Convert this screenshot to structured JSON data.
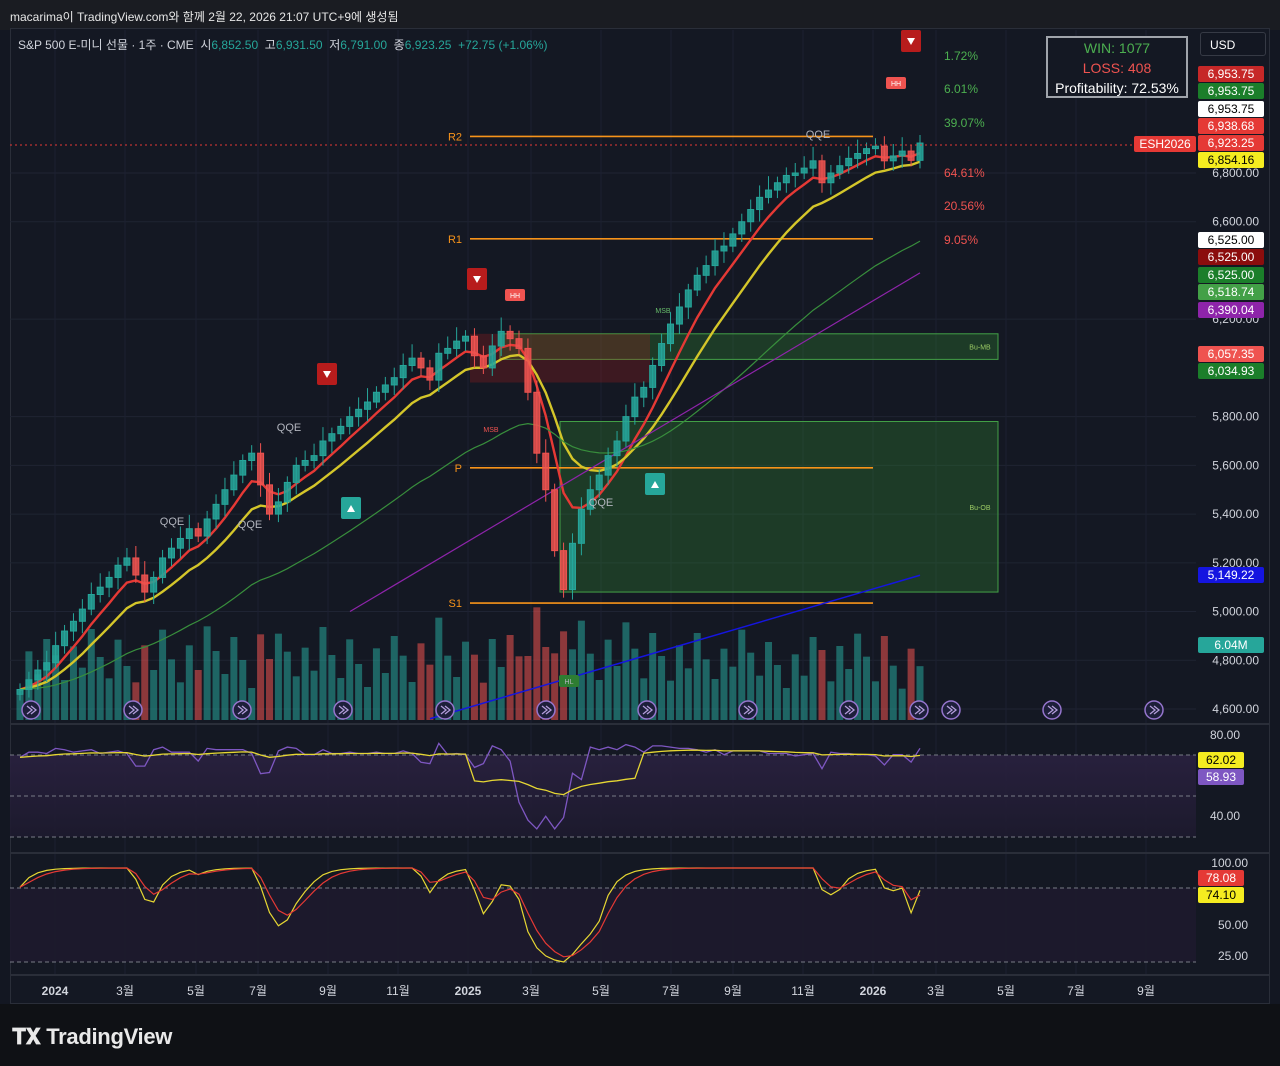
{
  "header": {
    "title": "macarima이 TradingView.com와 함께 2월 22, 2026 21:07 UTC+9에 생성됨"
  },
  "legend": {
    "symbol": "S&P 500 E-미니 선물 · 1주 · CME",
    "o_label": "시",
    "o": "6,852.50",
    "h_label": "고",
    "h": "6,931.50",
    "l_label": "저",
    "l": "6,791.00",
    "c_label": "종",
    "c": "6,923.25",
    "change": "+72.75 (+1.06%)"
  },
  "stats": {
    "win": "WIN: 1077",
    "loss": "LOSS: 408",
    "profit": "Profitability: 72.53%"
  },
  "currency": "USD",
  "colors": {
    "up": "#26a69a",
    "down": "#ef5350",
    "ema_fast": "#e53935",
    "ema_slow": "#d4c62a",
    "level": "#f7931a"
  },
  "levels": [
    {
      "label": "R2",
      "value": 6950
    },
    {
      "label": "R1",
      "value": 6530
    },
    {
      "label": "P",
      "value": 5590
    },
    {
      "label": "S1",
      "value": 5035
    }
  ],
  "zones": [
    {
      "label": "Bu-MB",
      "from": 6035,
      "to": 6140
    },
    {
      "label": "Bu-OB",
      "from": 5080,
      "to": 5780
    }
  ],
  "annotations": [
    "QQE",
    "QQE",
    "QQE",
    "QQE",
    "QQE",
    "MSB",
    "MSB",
    "HH",
    "HH",
    "HL"
  ],
  "percents": [
    {
      "text": "1.72%",
      "color": "#4caf50"
    },
    {
      "text": "6.01%",
      "color": "#4caf50"
    },
    {
      "text": "39.07%",
      "color": "#4caf50"
    },
    {
      "text": "64.61%",
      "color": "#ef5350"
    },
    {
      "text": "20.56%",
      "color": "#ef5350"
    },
    {
      "text": "9.05%",
      "color": "#ef5350"
    }
  ],
  "price_tags": [
    {
      "text": "6,953.75",
      "bg": "#c62828",
      "fg": "#ffffff",
      "y": 74
    },
    {
      "text": "6,953.75",
      "bg": "#1b7e2a",
      "fg": "#ffffff",
      "y": 91
    },
    {
      "text": "6,953.75",
      "bg": "#ffffff",
      "fg": "#000000",
      "y": 109
    },
    {
      "text": "6,938.68",
      "bg": "#e53935",
      "fg": "#ffffff",
      "y": 126
    },
    {
      "text": "6,923.25",
      "bg": "#e53935",
      "fg": "#ffffff",
      "y": 143
    },
    {
      "text": "6,854.16",
      "bg": "#f5ec20",
      "fg": "#000000",
      "y": 160
    },
    {
      "text": "6,525.00",
      "bg": "#ffffff",
      "fg": "#000000",
      "y": 240
    },
    {
      "text": "6,525.00",
      "bg": "#8b0d0d",
      "fg": "#ffffff",
      "y": 257
    },
    {
      "text": "6,525.00",
      "bg": "#1b7e2a",
      "fg": "#ffffff",
      "y": 275
    },
    {
      "text": "6,518.74",
      "bg": "#43a047",
      "fg": "#ffffff",
      "y": 292
    },
    {
      "text": "6,390.04",
      "bg": "#8e24aa",
      "fg": "#ffffff",
      "y": 310
    },
    {
      "text": "6,057.35",
      "bg": "#ef5350",
      "fg": "#ffffff",
      "y": 354
    },
    {
      "text": "6,034.93",
      "bg": "#1b7e2a",
      "fg": "#ffffff",
      "y": 371
    },
    {
      "text": "5,149.22",
      "bg": "#1515e0",
      "fg": "#ffffff",
      "y": 575
    },
    {
      "text": "6.04M",
      "bg": "#26a69a",
      "fg": "#ffffff",
      "y": 645
    }
  ],
  "symbol_tag": "ESH2026",
  "price_axis": [
    "6,800.00",
    "6,600.00",
    "6,200.00",
    "5,800.00",
    "5,600.00",
    "5,400.00",
    "5,200.00",
    "5,000.00",
    "4,800.00",
    "4,600.00"
  ],
  "rsi": {
    "ticks": [
      "80.00",
      "40.00"
    ],
    "tags": [
      {
        "text": "62.02",
        "bg": "#f5ec20",
        "fg": "#000"
      },
      {
        "text": "58.93",
        "bg": "#7e57c2",
        "fg": "#fff"
      }
    ]
  },
  "stoch": {
    "ticks": [
      "100.00",
      "50.00",
      "25.00"
    ],
    "tags": [
      {
        "text": "78.08",
        "bg": "#e53935",
        "fg": "#fff"
      },
      {
        "text": "74.10",
        "bg": "#f5ec20",
        "fg": "#000"
      }
    ]
  },
  "time_axis": [
    {
      "label": "2024",
      "x": 55,
      "bold": true
    },
    {
      "label": "3월",
      "x": 125
    },
    {
      "label": "5월",
      "x": 196
    },
    {
      "label": "7월",
      "x": 258
    },
    {
      "label": "9월",
      "x": 328
    },
    {
      "label": "11월",
      "x": 398
    },
    {
      "label": "2025",
      "x": 468,
      "bold": true
    },
    {
      "label": "3월",
      "x": 531
    },
    {
      "label": "5월",
      "x": 601
    },
    {
      "label": "7월",
      "x": 671
    },
    {
      "label": "9월",
      "x": 733
    },
    {
      "label": "11월",
      "x": 803
    },
    {
      "label": "2026",
      "x": 873,
      "bold": true
    },
    {
      "label": "3월",
      "x": 936
    },
    {
      "label": "5월",
      "x": 1006
    },
    {
      "label": "7월",
      "x": 1076
    },
    {
      "label": "9월",
      "x": 1146
    }
  ],
  "footer": {
    "logo": "TradingView"
  },
  "chart_data": {
    "type": "candlestick",
    "timeframe": "1W",
    "yrange": [
      4560,
      7050
    ],
    "closes": [
      4680,
      4720,
      4760,
      4790,
      4860,
      4920,
      4960,
      5010,
      5070,
      5100,
      5140,
      5190,
      5220,
      5150,
      5080,
      5140,
      5220,
      5260,
      5300,
      5340,
      5310,
      5380,
      5440,
      5500,
      5560,
      5620,
      5650,
      5520,
      5400,
      5450,
      5530,
      5600,
      5620,
      5640,
      5700,
      5730,
      5760,
      5800,
      5830,
      5860,
      5900,
      5930,
      5960,
      6010,
      6040,
      6000,
      5950,
      6060,
      6080,
      6110,
      6130,
      6050,
      6000,
      6090,
      6150,
      6120,
      6080,
      5900,
      5650,
      5500,
      5250,
      5090,
      5280,
      5420,
      5500,
      5560,
      5640,
      5700,
      5800,
      5880,
      5920,
      6010,
      6100,
      6180,
      6250,
      6320,
      6380,
      6420,
      6480,
      6500,
      6550,
      6600,
      6650,
      6700,
      6730,
      6760,
      6790,
      6800,
      6820,
      6850,
      6760,
      6800,
      6830,
      6860,
      6880,
      6900,
      6910,
      6850,
      6870,
      6890,
      6852,
      6923
    ]
  }
}
